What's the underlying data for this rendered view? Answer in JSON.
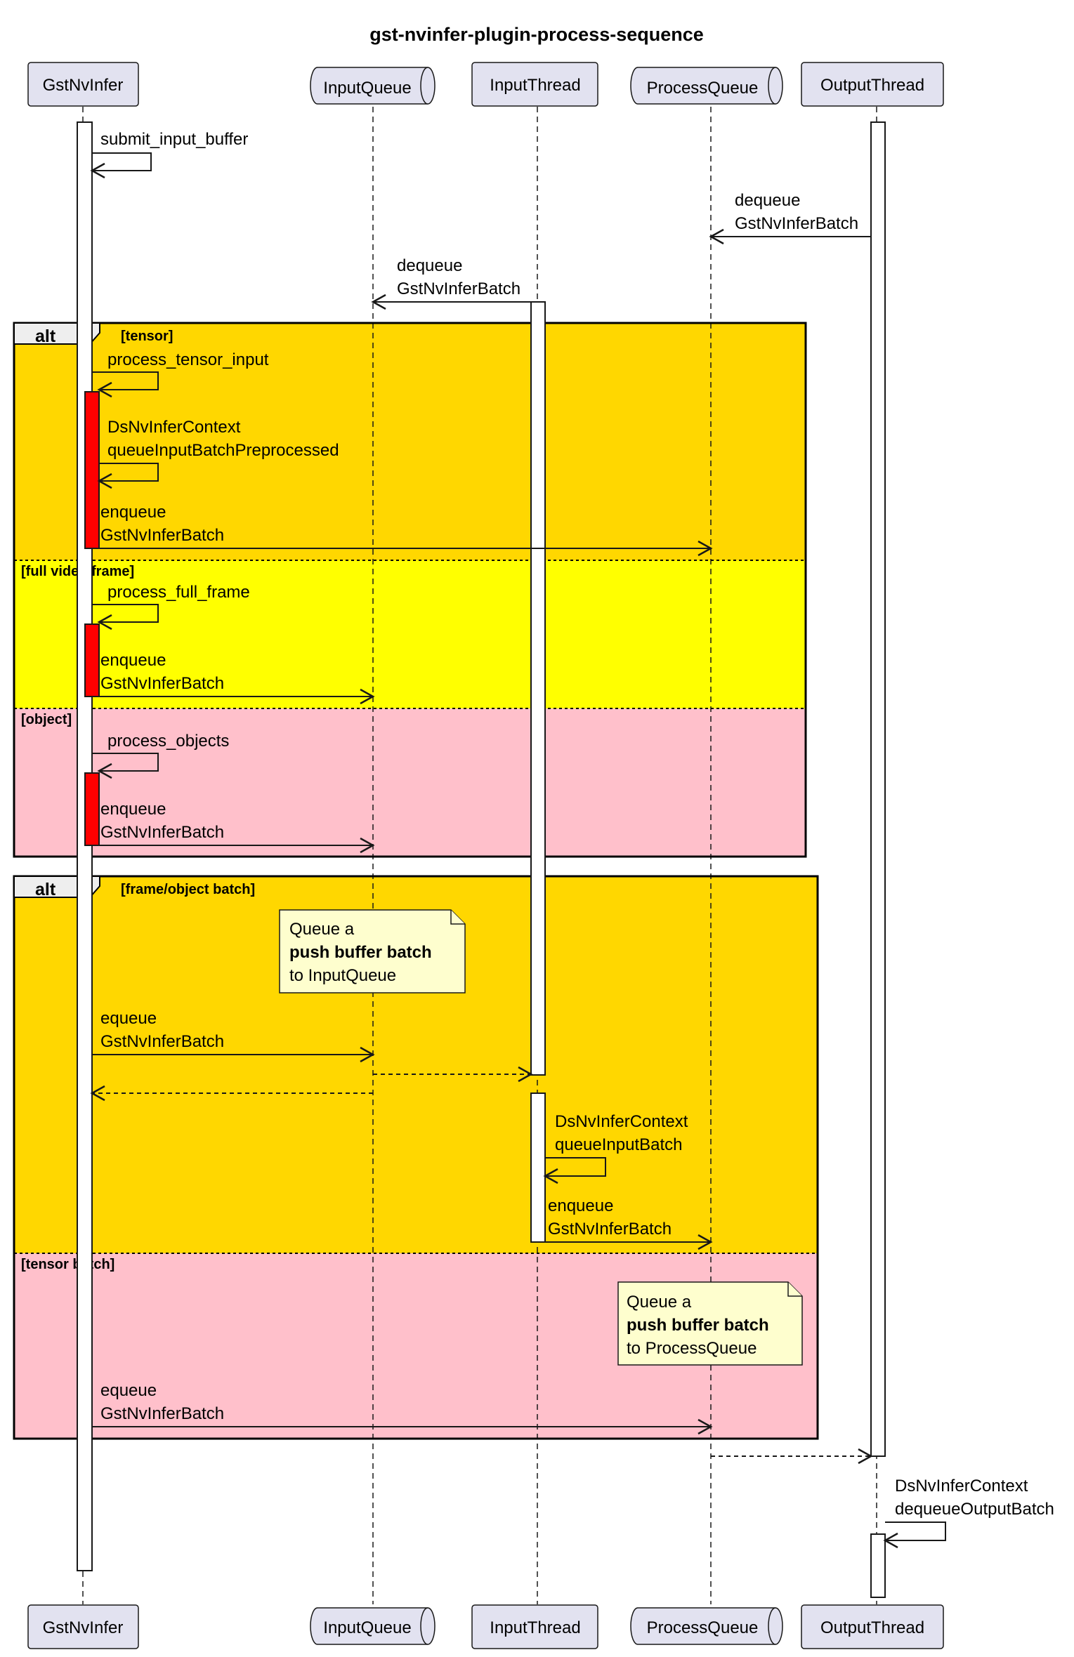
{
  "title": "gst-nvinfer-plugin-process-sequence",
  "participants": {
    "gstnvinfer": "GstNvInfer",
    "inputqueue": "InputQueue",
    "inputthread": "InputThread",
    "processqueue": "ProcessQueue",
    "outputthread": "OutputThread"
  },
  "messages": {
    "submit_input_buffer": "submit_input_buffer",
    "output_dequeue": [
      "dequeue",
      "GstNvInferBatch"
    ],
    "input_dequeue": [
      "dequeue",
      "GstNvInferBatch"
    ],
    "process_tensor_input": "process_tensor_input",
    "queue_input_batch_preprocessed": [
      "DsNvInferContext",
      "queueInputBatchPreprocessed"
    ],
    "tensor_enqueue": [
      "enqueue",
      "GstNvInferBatch"
    ],
    "process_full_frame": "process_full_frame",
    "full_frame_enqueue": [
      "enqueue",
      "GstNvInferBatch"
    ],
    "process_objects": "process_objects",
    "objects_enqueue": [
      "enqueue",
      "GstNvInferBatch"
    ],
    "batch_equeue_input": [
      "equeue",
      "GstNvInferBatch"
    ],
    "queue_input_batch": [
      "DsNvInferContext",
      "queueInputBatch"
    ],
    "input_thread_enqueue": [
      "enqueue",
      "GstNvInferBatch"
    ],
    "tensor_batch_equeue": [
      "equeue",
      "GstNvInferBatch"
    ],
    "dequeue_output_batch": [
      "DsNvInferContext",
      "dequeueOutputBatch"
    ]
  },
  "fragments": {
    "alt1": {
      "keyword": "alt",
      "guards": [
        "[tensor]",
        "[full video frame]",
        "[object]"
      ],
      "colors": [
        "#ffd700",
        "#ffff00",
        "#ffc0cb"
      ]
    },
    "alt2": {
      "keyword": "alt",
      "guards": [
        "[frame/object batch]",
        "[tensor batch]"
      ],
      "colors": [
        "#ffd700",
        "#ffc0cb"
      ]
    }
  },
  "notes": {
    "note_input": [
      "Queue a",
      "push buffer batch",
      "to InputQueue"
    ],
    "note_process": [
      "Queue a",
      "push buffer batch",
      "to ProcessQueue"
    ]
  },
  "colors": {
    "participant_fill": "#e2e2f0",
    "note_fill": "#fefece",
    "activation_highlight": "#ff0000"
  }
}
